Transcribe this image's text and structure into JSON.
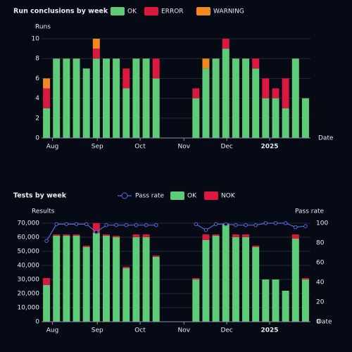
{
  "chart_data": [
    {
      "type": "bar",
      "title": "Run conclusions by week",
      "y_label": "Runs",
      "x_label": "Date",
      "categories": [
        null,
        null,
        null,
        null,
        null,
        null,
        null,
        null,
        null,
        null,
        null,
        null,
        null,
        null,
        null,
        null,
        null,
        null,
        null,
        null,
        null,
        null,
        null,
        null,
        null,
        null,
        null
      ],
      "series": [
        {
          "name": "OK",
          "color": "#5dcb78",
          "values": [
            3,
            8,
            8,
            8,
            7,
            8,
            8,
            8,
            5,
            8,
            8,
            6,
            0,
            0,
            0,
            4,
            7,
            8,
            9,
            8,
            8,
            7,
            4,
            4,
            3,
            8,
            4
          ]
        },
        {
          "name": "ERROR",
          "color": "#dc1740",
          "values": [
            2,
            0,
            0,
            0,
            0,
            1,
            0,
            0,
            2,
            0,
            0,
            2,
            0,
            0,
            0,
            1,
            0,
            0,
            1,
            0,
            0,
            1,
            2,
            1,
            3,
            0,
            0
          ]
        },
        {
          "name": "WARNING",
          "color": "#f08a1e",
          "values": [
            1,
            0,
            0,
            0,
            0,
            1,
            0,
            0,
            0,
            0,
            0,
            0,
            0,
            0,
            0,
            0,
            1,
            0,
            0,
            0,
            0,
            0,
            0,
            0,
            0,
            0,
            0
          ]
        }
      ],
      "ylim": [
        0,
        10
      ],
      "yticks": [
        0,
        2,
        4,
        6,
        8,
        10
      ],
      "xticks": [
        {
          "value": 0.6,
          "label": "Aug"
        },
        {
          "value": 5.1,
          "label": "Sep"
        },
        {
          "value": 9.4,
          "label": "Oct"
        },
        {
          "value": 13.8,
          "label": "Nov"
        },
        {
          "value": 18.1,
          "label": "Dec"
        },
        {
          "value": 22.4,
          "label": "2025"
        }
      ],
      "grid": true
    },
    {
      "type": "bar",
      "title": "Tests by week",
      "y_label": "Results",
      "y2_label": "Pass rate",
      "x_label": "Date",
      "categories": [
        null,
        null,
        null,
        null,
        null,
        null,
        null,
        null,
        null,
        null,
        null,
        null,
        null,
        null,
        null,
        null,
        null,
        null,
        null,
        null,
        null,
        null,
        null,
        null,
        null,
        null,
        null
      ],
      "series": [
        {
          "name": "Pass rate",
          "type": "line",
          "axis": "y2",
          "color": "#5868d8",
          "values": [
            82,
            99,
            99,
            99,
            99,
            91,
            98,
            98,
            98,
            98,
            98,
            98,
            null,
            null,
            null,
            99,
            93,
            99,
            99,
            98,
            98,
            98,
            100,
            100,
            100,
            96,
            97
          ]
        },
        {
          "name": "OK",
          "color": "#5dcb78",
          "values": [
            26000,
            61000,
            61000,
            61000,
            53000,
            63000,
            61000,
            60000,
            38000,
            60000,
            60000,
            46000,
            0,
            0,
            0,
            30000,
            58000,
            61000,
            69000,
            60000,
            60000,
            53000,
            30000,
            30000,
            22000,
            59000,
            30000
          ]
        },
        {
          "name": "NOK",
          "color": "#dc1740",
          "values": [
            5000,
            1000,
            1000,
            1000,
            1000,
            7000,
            1000,
            1000,
            1000,
            2000,
            2000,
            1000,
            0,
            0,
            0,
            1000,
            4000,
            1000,
            1000,
            2000,
            2000,
            1000,
            0,
            0,
            0,
            3000,
            1000
          ]
        }
      ],
      "ylim": [
        0,
        70000
      ],
      "yticks": [
        {
          "value": 0,
          "label": "0"
        },
        {
          "value": 10000,
          "label": "10,000"
        },
        {
          "value": 20000,
          "label": "20,000"
        },
        {
          "value": 30000,
          "label": "30,000"
        },
        {
          "value": 40000,
          "label": "40,000"
        },
        {
          "value": 50000,
          "label": "50,000"
        },
        {
          "value": 60000,
          "label": "60,000"
        },
        {
          "value": 70000,
          "label": "70,000"
        }
      ],
      "y2lim": [
        0,
        100
      ],
      "y2ticks": [
        0,
        20,
        40,
        60,
        80,
        100
      ],
      "xticks": [
        {
          "value": 0.6,
          "label": "Aug"
        },
        {
          "value": 5.1,
          "label": "Sep"
        },
        {
          "value": 9.4,
          "label": "Oct"
        },
        {
          "value": 13.8,
          "label": "Nov"
        },
        {
          "value": 18.1,
          "label": "Dec"
        },
        {
          "value": 22.4,
          "label": "2025"
        }
      ],
      "grid": true
    }
  ]
}
